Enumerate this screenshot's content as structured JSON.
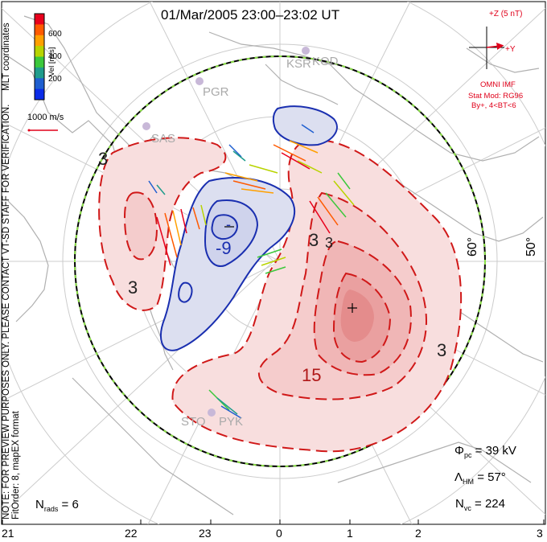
{
  "title": "01/Mar/2005 23:00–23:02 UT",
  "side_note_line1": "NOTE: FOR PREVIEW PURPOSES ONLY. PLEASE CONTACT VT-SD STAFF FOR VERIFICATION.",
  "side_note_line2": "FitOrder: 8, mapEX format",
  "coord_label": "MLT coordinates",
  "color_scale": {
    "label": "Vel [m/s]",
    "ticks": [
      "600",
      "400",
      "200"
    ],
    "colors": [
      "#e8001c",
      "#ff5a00",
      "#ffa000",
      "#b8d400",
      "#3cc83c",
      "#1f9c8c",
      "#1f5fd0",
      "#0b2ce8"
    ]
  },
  "velocity_ref": "1000 m/s",
  "imf": {
    "z_label": "+Z (5 nT)",
    "y_label": "+Y",
    "source": "OMNI IMF",
    "model": "Stat Mod: RG96",
    "condition": "By+, 4<BT<6"
  },
  "stations": [
    "KSR",
    "KOD",
    "PGR",
    "SAS",
    "STO",
    "PYK"
  ],
  "latitude_labels": [
    "60°",
    "50°"
  ],
  "contour_labels": [
    "3",
    "-9",
    "3",
    "3",
    "15",
    "3",
    "-",
    "3"
  ],
  "stats": {
    "pcp": "Φ",
    "pcp_sub": "pc",
    "pcp_val": " = 39 kV",
    "hm": "Λ",
    "hm_sub": "HM",
    "hm_val": " = 57°",
    "nvc": "N",
    "nvc_sub": "vc",
    "nvc_val": " = 224",
    "nrads": "N",
    "nrads_sub": "rads",
    "nrads_val": " = 6"
  },
  "mlt_axis": [
    "21",
    "22",
    "23",
    "0",
    "1",
    "2",
    "3"
  ],
  "colors": {
    "positive_contour": "#d01818",
    "negative_contour": "#1a2fb0",
    "positive_fill": "#f4c8c8",
    "negative_fill": "#d8dcf0"
  }
}
